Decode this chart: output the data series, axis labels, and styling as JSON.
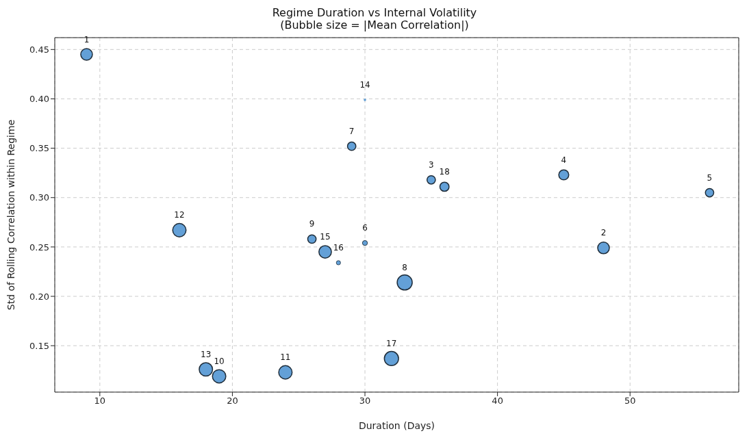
{
  "chart_data": {
    "type": "bubble",
    "title": "Regime Duration vs Internal Volatility",
    "subtitle": "(Bubble size = |Mean Correlation|)",
    "xlabel": "Duration (Days)",
    "ylabel": "Std of Rolling Correlation within Regime",
    "x": [
      9,
      48,
      35,
      45,
      56,
      30,
      29,
      33,
      26,
      19,
      24,
      16,
      18,
      30,
      27,
      28,
      32,
      36
    ],
    "series": [
      {
        "color": "#5b9bd5",
        "values": [
          0.445,
          0.249,
          0.318,
          0.323,
          0.305,
          0.254,
          0.352,
          0.214,
          0.258,
          0.119,
          0.123,
          0.267,
          0.126,
          0.399,
          0.245,
          0.234,
          0.137,
          0.311
        ],
        "sizes": [
          0.6,
          0.6,
          0.31,
          0.44,
          0.31,
          0.11,
          0.31,
          1,
          0.31,
          0.79,
          0.79,
          0.79,
          0.79,
          0.02,
          0.69,
          0.08,
          0.89,
          0.37
        ]
      }
    ],
    "annotations": [
      {
        "text": "1",
        "x": 9,
        "y": 0.445
      },
      {
        "text": "2",
        "x": 48,
        "y": 0.249
      },
      {
        "text": "3",
        "x": 35,
        "y": 0.318
      },
      {
        "text": "4",
        "x": 45,
        "y": 0.323
      },
      {
        "text": "5",
        "x": 56,
        "y": 0.305
      },
      {
        "text": "6",
        "x": 30,
        "y": 0.254
      },
      {
        "text": "7",
        "x": 29,
        "y": 0.352
      },
      {
        "text": "8",
        "x": 33,
        "y": 0.214
      },
      {
        "text": "9",
        "x": 26,
        "y": 0.258
      },
      {
        "text": "10",
        "x": 19,
        "y": 0.119
      },
      {
        "text": "11",
        "x": 24,
        "y": 0.123
      },
      {
        "text": "12",
        "x": 16,
        "y": 0.267
      },
      {
        "text": "13",
        "x": 18,
        "y": 0.126
      },
      {
        "text": "14",
        "x": 30,
        "y": 0.399
      },
      {
        "text": "15",
        "x": 27,
        "y": 0.245
      },
      {
        "text": "16",
        "x": 28,
        "y": 0.234
      },
      {
        "text": "17",
        "x": 32,
        "y": 0.137
      },
      {
        "text": "18",
        "x": 36,
        "y": 0.311
      }
    ],
    "xlim": [
      6.6,
      58.2
    ],
    "xticks": [
      10,
      20,
      30,
      40,
      50
    ],
    "ylim": [
      0.103,
      0.462
    ],
    "yticks": [
      0.15,
      {
        "value": 0.2,
        "label": "0.20"
      },
      0.25,
      {
        "value": 0.3,
        "label": "0.30"
      },
      0.35,
      {
        "value": 0.4,
        "label": "0.40"
      },
      0.45
    ],
    "grid": true
  }
}
